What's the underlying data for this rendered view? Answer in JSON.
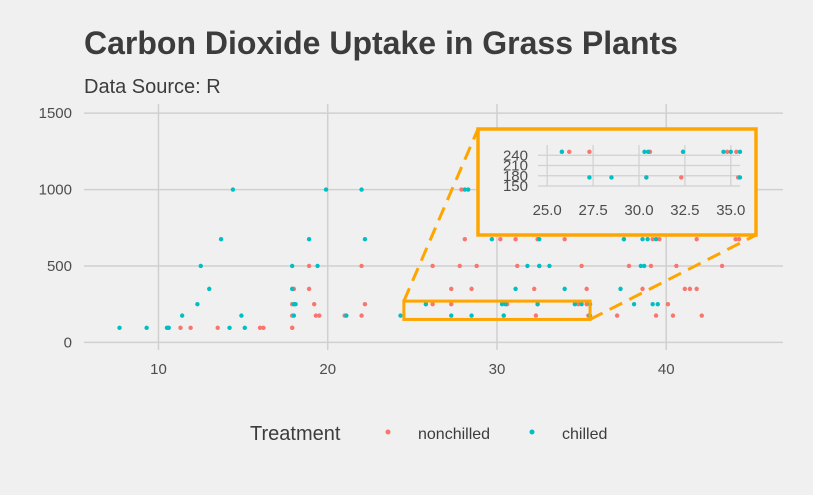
{
  "colors": {
    "background": "#f0f0f0",
    "grid": "#d0d0d0",
    "nonchilled": "#f8766d",
    "chilled": "#00bfc4",
    "highlight": "#ffa500"
  },
  "chart_data": {
    "type": "scatter",
    "title": "Carbon Dioxide Uptake in Grass Plants",
    "subtitle": "Data Source: R",
    "xlabel": "",
    "ylabel": "",
    "xlim": [
      5.6,
      46.9
    ],
    "ylim": [
      -50,
      1560
    ],
    "x_ticks": [
      10,
      20,
      30,
      40
    ],
    "y_ticks": [
      0,
      500,
      1000,
      1500
    ],
    "grid": true,
    "legend": {
      "title": "Treatment",
      "position": "bottom"
    },
    "series": [
      {
        "name": "nonchilled",
        "points": [
          [
            11.3,
            95
          ],
          [
            11.9,
            95
          ],
          [
            13.5,
            95
          ],
          [
            16.0,
            95
          ],
          [
            16.2,
            95
          ],
          [
            17.9,
            95
          ],
          [
            17.9,
            95
          ],
          [
            17.9,
            175
          ],
          [
            19.3,
            175
          ],
          [
            19.5,
            175
          ],
          [
            21.0,
            175
          ],
          [
            22.0,
            175
          ],
          [
            17.9,
            250
          ],
          [
            19.2,
            250
          ],
          [
            22.2,
            250
          ],
          [
            18.0,
            350
          ],
          [
            18.9,
            350
          ],
          [
            27.3,
            350
          ],
          [
            28.5,
            350
          ],
          [
            18.9,
            500
          ],
          [
            22.0,
            500
          ],
          [
            26.2,
            500
          ],
          [
            27.8,
            500
          ],
          [
            28.8,
            500
          ],
          [
            31.2,
            500
          ],
          [
            32.5,
            500
          ],
          [
            25.8,
            250
          ],
          [
            26.2,
            250
          ],
          [
            27.3,
            250
          ],
          [
            30.6,
            250
          ],
          [
            32.4,
            250
          ],
          [
            34.8,
            250
          ],
          [
            35.3,
            250
          ],
          [
            28.1,
            675
          ],
          [
            30.2,
            675
          ],
          [
            31.1,
            675
          ],
          [
            32.4,
            675
          ],
          [
            34.0,
            675
          ],
          [
            37.5,
            675
          ],
          [
            39.2,
            675
          ],
          [
            39.6,
            675
          ],
          [
            27.9,
            1000
          ],
          [
            31.8,
            1000
          ],
          [
            34.3,
            1000
          ],
          [
            35.0,
            1000
          ],
          [
            39.0,
            1000
          ],
          [
            39.7,
            1000
          ],
          [
            42.9,
            1000
          ],
          [
            30.4,
            175
          ],
          [
            32.3,
            175
          ],
          [
            35.4,
            175
          ],
          [
            37.1,
            175
          ],
          [
            39.4,
            175
          ],
          [
            40.4,
            175
          ],
          [
            42.1,
            175
          ],
          [
            32.2,
            350
          ],
          [
            35.3,
            350
          ],
          [
            38.6,
            350
          ],
          [
            41.1,
            350
          ],
          [
            41.4,
            350
          ],
          [
            41.8,
            350
          ],
          [
            35.0,
            500
          ],
          [
            37.8,
            500
          ],
          [
            39.1,
            500
          ],
          [
            40.6,
            500
          ],
          [
            43.3,
            500
          ],
          [
            39.7,
            1000
          ],
          [
            40.1,
            250
          ],
          [
            41.8,
            675
          ],
          [
            44.3,
            675
          ],
          [
            44.1,
            675
          ]
        ]
      },
      {
        "name": "chilled",
        "points": [
          [
            7.7,
            95
          ],
          [
            9.3,
            95
          ],
          [
            10.5,
            95
          ],
          [
            10.6,
            95
          ],
          [
            10.6,
            95
          ],
          [
            14.2,
            95
          ],
          [
            15.1,
            95
          ],
          [
            11.4,
            175
          ],
          [
            14.9,
            175
          ],
          [
            18.0,
            175
          ],
          [
            21.1,
            175
          ],
          [
            24.3,
            175
          ],
          [
            27.3,
            175
          ],
          [
            30.4,
            175
          ],
          [
            12.3,
            250
          ],
          [
            18.0,
            250
          ],
          [
            18.1,
            250
          ],
          [
            30.3,
            250
          ],
          [
            30.5,
            250
          ],
          [
            13.0,
            350
          ],
          [
            17.9,
            350
          ],
          [
            37.3,
            350
          ],
          [
            12.5,
            500
          ],
          [
            17.9,
            500
          ],
          [
            19.4,
            500
          ],
          [
            32.5,
            500
          ],
          [
            38.5,
            500
          ],
          [
            38.7,
            500
          ],
          [
            13.7,
            675
          ],
          [
            18.9,
            675
          ],
          [
            22.2,
            675
          ],
          [
            29.7,
            675
          ],
          [
            32.5,
            675
          ],
          [
            37.5,
            675
          ],
          [
            38.6,
            675
          ],
          [
            14.4,
            1000
          ],
          [
            19.9,
            1000
          ],
          [
            22.0,
            1000
          ],
          [
            28.1,
            1000
          ],
          [
            31.5,
            1000
          ],
          [
            35.4,
            1000
          ],
          [
            35.5,
            1000
          ],
          [
            25.8,
            250
          ],
          [
            28.5,
            175
          ],
          [
            32.4,
            250
          ],
          [
            34.6,
            250
          ],
          [
            35.0,
            250
          ],
          [
            35.5,
            250
          ],
          [
            31.1,
            350
          ],
          [
            34.0,
            350
          ],
          [
            33.1,
            500
          ],
          [
            39.4,
            675
          ],
          [
            39.2,
            250
          ],
          [
            38.9,
            675
          ],
          [
            39.5,
            250
          ],
          [
            35.5,
            175
          ],
          [
            28.3,
            1000
          ],
          [
            42.4,
            1000
          ],
          [
            38.1,
            250
          ],
          [
            31.8,
            500
          ]
        ]
      }
    ],
    "zoom": {
      "x_range": [
        24.5,
        35.5
      ],
      "y_range": [
        150,
        270
      ],
      "x_ticks": [
        "25.0",
        "27.5",
        "30.0",
        "32.5",
        "35.0"
      ],
      "y_ticks": [
        "150",
        "180",
        "210",
        "240"
      ]
    }
  }
}
